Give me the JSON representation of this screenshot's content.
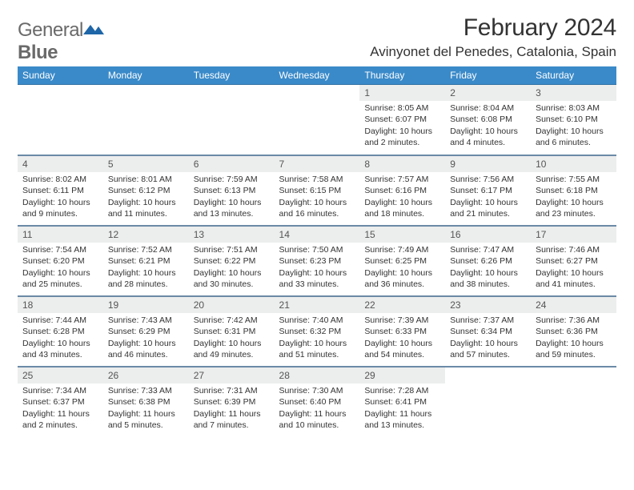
{
  "brand": {
    "part1": "General",
    "part2": "Blue"
  },
  "title": "February 2024",
  "location": "Avinyonet del Penedes, Catalonia, Spain",
  "colors": {
    "header_bg": "#3a8ac9",
    "header_text": "#ffffff",
    "daynum_bg": "#eceded",
    "rule": "#6b8aa6",
    "text": "#333333",
    "logo_gray": "#6a6a6a",
    "logo_blue": "#1e66a8"
  },
  "weekdays": [
    "Sunday",
    "Monday",
    "Tuesday",
    "Wednesday",
    "Thursday",
    "Friday",
    "Saturday"
  ],
  "weeks": [
    [
      null,
      null,
      null,
      null,
      {
        "n": "1",
        "sr": "Sunrise: 8:05 AM",
        "ss": "Sunset: 6:07 PM",
        "dl": "Daylight: 10 hours and 2 minutes."
      },
      {
        "n": "2",
        "sr": "Sunrise: 8:04 AM",
        "ss": "Sunset: 6:08 PM",
        "dl": "Daylight: 10 hours and 4 minutes."
      },
      {
        "n": "3",
        "sr": "Sunrise: 8:03 AM",
        "ss": "Sunset: 6:10 PM",
        "dl": "Daylight: 10 hours and 6 minutes."
      }
    ],
    [
      {
        "n": "4",
        "sr": "Sunrise: 8:02 AM",
        "ss": "Sunset: 6:11 PM",
        "dl": "Daylight: 10 hours and 9 minutes."
      },
      {
        "n": "5",
        "sr": "Sunrise: 8:01 AM",
        "ss": "Sunset: 6:12 PM",
        "dl": "Daylight: 10 hours and 11 minutes."
      },
      {
        "n": "6",
        "sr": "Sunrise: 7:59 AM",
        "ss": "Sunset: 6:13 PM",
        "dl": "Daylight: 10 hours and 13 minutes."
      },
      {
        "n": "7",
        "sr": "Sunrise: 7:58 AM",
        "ss": "Sunset: 6:15 PM",
        "dl": "Daylight: 10 hours and 16 minutes."
      },
      {
        "n": "8",
        "sr": "Sunrise: 7:57 AM",
        "ss": "Sunset: 6:16 PM",
        "dl": "Daylight: 10 hours and 18 minutes."
      },
      {
        "n": "9",
        "sr": "Sunrise: 7:56 AM",
        "ss": "Sunset: 6:17 PM",
        "dl": "Daylight: 10 hours and 21 minutes."
      },
      {
        "n": "10",
        "sr": "Sunrise: 7:55 AM",
        "ss": "Sunset: 6:18 PM",
        "dl": "Daylight: 10 hours and 23 minutes."
      }
    ],
    [
      {
        "n": "11",
        "sr": "Sunrise: 7:54 AM",
        "ss": "Sunset: 6:20 PM",
        "dl": "Daylight: 10 hours and 25 minutes."
      },
      {
        "n": "12",
        "sr": "Sunrise: 7:52 AM",
        "ss": "Sunset: 6:21 PM",
        "dl": "Daylight: 10 hours and 28 minutes."
      },
      {
        "n": "13",
        "sr": "Sunrise: 7:51 AM",
        "ss": "Sunset: 6:22 PM",
        "dl": "Daylight: 10 hours and 30 minutes."
      },
      {
        "n": "14",
        "sr": "Sunrise: 7:50 AM",
        "ss": "Sunset: 6:23 PM",
        "dl": "Daylight: 10 hours and 33 minutes."
      },
      {
        "n": "15",
        "sr": "Sunrise: 7:49 AM",
        "ss": "Sunset: 6:25 PM",
        "dl": "Daylight: 10 hours and 36 minutes."
      },
      {
        "n": "16",
        "sr": "Sunrise: 7:47 AM",
        "ss": "Sunset: 6:26 PM",
        "dl": "Daylight: 10 hours and 38 minutes."
      },
      {
        "n": "17",
        "sr": "Sunrise: 7:46 AM",
        "ss": "Sunset: 6:27 PM",
        "dl": "Daylight: 10 hours and 41 minutes."
      }
    ],
    [
      {
        "n": "18",
        "sr": "Sunrise: 7:44 AM",
        "ss": "Sunset: 6:28 PM",
        "dl": "Daylight: 10 hours and 43 minutes."
      },
      {
        "n": "19",
        "sr": "Sunrise: 7:43 AM",
        "ss": "Sunset: 6:29 PM",
        "dl": "Daylight: 10 hours and 46 minutes."
      },
      {
        "n": "20",
        "sr": "Sunrise: 7:42 AM",
        "ss": "Sunset: 6:31 PM",
        "dl": "Daylight: 10 hours and 49 minutes."
      },
      {
        "n": "21",
        "sr": "Sunrise: 7:40 AM",
        "ss": "Sunset: 6:32 PM",
        "dl": "Daylight: 10 hours and 51 minutes."
      },
      {
        "n": "22",
        "sr": "Sunrise: 7:39 AM",
        "ss": "Sunset: 6:33 PM",
        "dl": "Daylight: 10 hours and 54 minutes."
      },
      {
        "n": "23",
        "sr": "Sunrise: 7:37 AM",
        "ss": "Sunset: 6:34 PM",
        "dl": "Daylight: 10 hours and 57 minutes."
      },
      {
        "n": "24",
        "sr": "Sunrise: 7:36 AM",
        "ss": "Sunset: 6:36 PM",
        "dl": "Daylight: 10 hours and 59 minutes."
      }
    ],
    [
      {
        "n": "25",
        "sr": "Sunrise: 7:34 AM",
        "ss": "Sunset: 6:37 PM",
        "dl": "Daylight: 11 hours and 2 minutes."
      },
      {
        "n": "26",
        "sr": "Sunrise: 7:33 AM",
        "ss": "Sunset: 6:38 PM",
        "dl": "Daylight: 11 hours and 5 minutes."
      },
      {
        "n": "27",
        "sr": "Sunrise: 7:31 AM",
        "ss": "Sunset: 6:39 PM",
        "dl": "Daylight: 11 hours and 7 minutes."
      },
      {
        "n": "28",
        "sr": "Sunrise: 7:30 AM",
        "ss": "Sunset: 6:40 PM",
        "dl": "Daylight: 11 hours and 10 minutes."
      },
      {
        "n": "29",
        "sr": "Sunrise: 7:28 AM",
        "ss": "Sunset: 6:41 PM",
        "dl": "Daylight: 11 hours and 13 minutes."
      },
      null,
      null
    ]
  ]
}
